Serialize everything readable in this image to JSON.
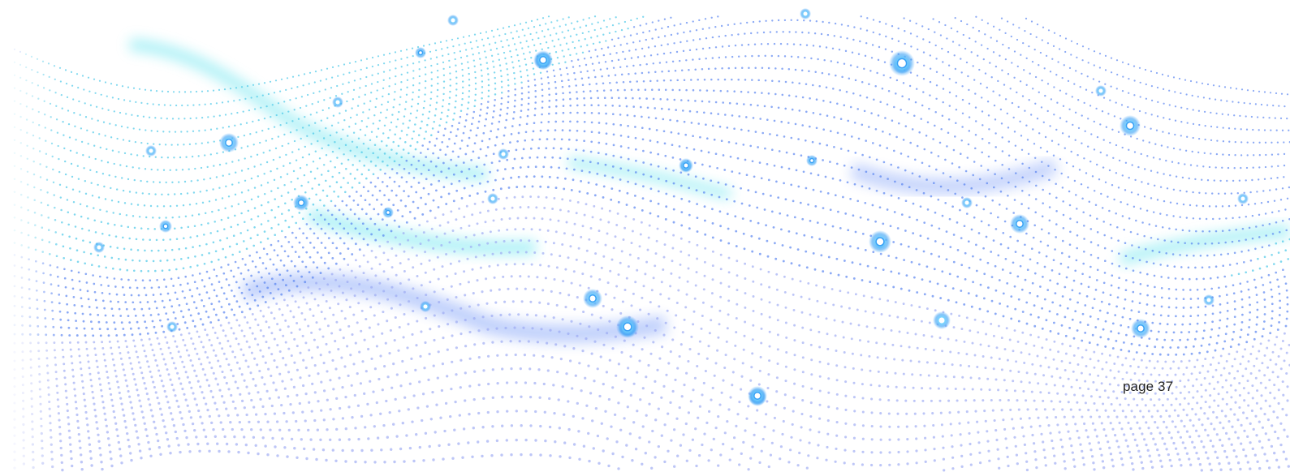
{
  "footer": {
    "page_label": "page 37"
  },
  "graphic": {
    "name": "particle-wave-illustration",
    "colors": {
      "dot_blue": "#4f7cf0",
      "dot_cyan": "#3cc3e6",
      "dot_lilac": "#9aa7f2",
      "glow_cyan": "#5fe3ee",
      "glow_blue": "#3b6df5",
      "pin_dark": "#2a3ee8",
      "pin_light": "#b5c3ff"
    }
  }
}
